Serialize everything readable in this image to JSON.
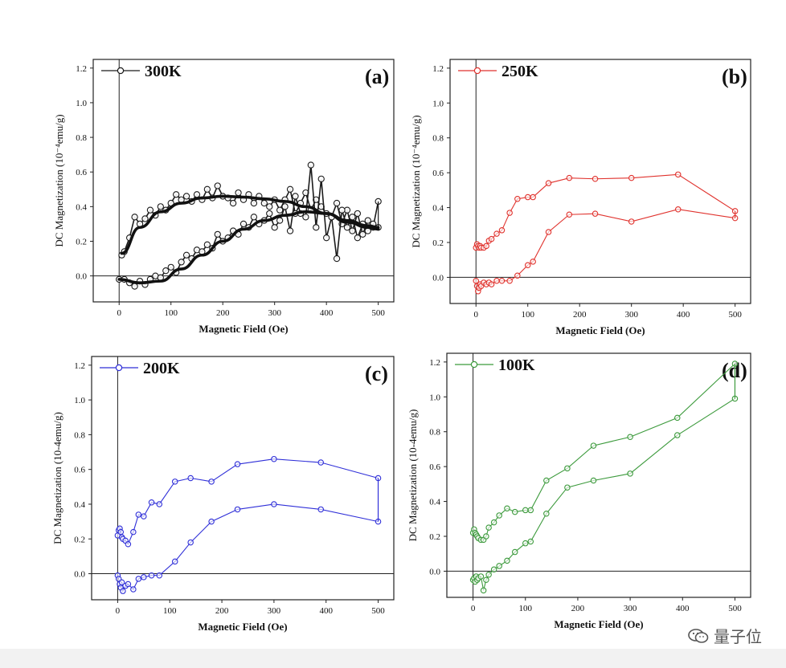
{
  "chart_data": [
    {
      "id": "a",
      "type": "line",
      "panel_label": "(a)",
      "xlabel": "Magnetic Field (Oe)",
      "ylabel": "DC Magnetization (10⁻⁴emu/g)",
      "xlim": [
        -50,
        530
      ],
      "ylim": [
        -0.15,
        1.25
      ],
      "xticks": [
        0,
        100,
        200,
        300,
        400,
        500
      ],
      "yticks": [
        0.0,
        0.2,
        0.4,
        0.6,
        0.8,
        1.0,
        1.2
      ],
      "xtick_labels": [
        "0",
        "100",
        "200",
        "300",
        "400",
        "500"
      ],
      "ytick_labels": [
        "0.0",
        "0.2",
        "0.4",
        "0.6",
        "0.8",
        "1.0",
        "1.2"
      ],
      "color": "#1a1a1a",
      "series": [
        {
          "name": "300K",
          "branch_upper": {
            "x": [
              5,
              10,
              20,
              30,
              40,
              50,
              60,
              70,
              80,
              90,
              100,
              110,
              120,
              130,
              140,
              150,
              160,
              170,
              180,
              190,
              200,
              210,
              220,
              230,
              240,
              250,
              260,
              270,
              280,
              290,
              300,
              310,
              320,
              330,
              340,
              350,
              360,
              370,
              380,
              390,
              400,
              410,
              420,
              430,
              440,
              450,
              460,
              470,
              480,
              490,
              500
            ],
            "y": [
              0.12,
              0.14,
              0.22,
              0.34,
              0.3,
              0.33,
              0.38,
              0.35,
              0.4,
              0.38,
              0.42,
              0.47,
              0.44,
              0.46,
              0.43,
              0.47,
              0.44,
              0.5,
              0.45,
              0.52,
              0.46,
              0.45,
              0.42,
              0.48,
              0.44,
              0.47,
              0.42,
              0.46,
              0.42,
              0.4,
              0.44,
              0.38,
              0.44,
              0.5,
              0.36,
              0.42,
              0.48,
              0.38,
              0.44,
              0.4,
              0.36,
              0.34,
              0.42,
              0.3,
              0.38,
              0.26,
              0.36,
              0.24,
              0.32,
              0.28,
              0.43
            ]
          },
          "branch_lower": {
            "x": [
              0,
              10,
              20,
              30,
              40,
              50,
              60,
              70,
              80,
              90,
              100,
              110,
              120,
              130,
              140,
              150,
              160,
              170,
              180,
              190,
              200,
              210,
              220,
              230,
              240,
              250,
              260,
              270,
              280,
              290,
              300,
              310,
              320,
              330,
              340,
              350,
              360,
              370,
              380,
              390,
              400,
              410,
              420,
              430,
              440,
              450,
              460,
              470,
              480,
              490,
              500
            ],
            "y": [
              -0.02,
              -0.02,
              -0.04,
              -0.06,
              -0.03,
              -0.05,
              -0.02,
              0.0,
              -0.01,
              0.03,
              0.05,
              0.02,
              0.08,
              0.12,
              0.1,
              0.15,
              0.14,
              0.18,
              0.16,
              0.24,
              0.2,
              0.22,
              0.26,
              0.24,
              0.3,
              0.28,
              0.34,
              0.3,
              0.32,
              0.36,
              0.28,
              0.32,
              0.4,
              0.26,
              0.46,
              0.36,
              0.34,
              0.64,
              0.28,
              0.56,
              0.22,
              0.34,
              0.1,
              0.38,
              0.28,
              0.34,
              0.22,
              0.3,
              0.26,
              0.3,
              0.28
            ]
          },
          "fit_upper": {
            "x": [
              5,
              40,
              80,
              120,
              160,
              200,
              240,
              280,
              320,
              360,
              400,
              440,
              480,
              500
            ],
            "y": [
              0.13,
              0.28,
              0.37,
              0.42,
              0.45,
              0.46,
              0.455,
              0.445,
              0.43,
              0.4,
              0.36,
              0.31,
              0.28,
              0.27
            ]
          },
          "fit_lower": {
            "x": [
              0,
              40,
              80,
              120,
              160,
              200,
              240,
              280,
              320,
              360,
              400,
              440,
              480,
              500
            ],
            "y": [
              -0.02,
              -0.04,
              -0.03,
              0.04,
              0.12,
              0.2,
              0.27,
              0.32,
              0.35,
              0.37,
              0.36,
              0.32,
              0.29,
              0.28
            ]
          }
        }
      ]
    },
    {
      "id": "b",
      "type": "line",
      "panel_label": "(b)",
      "xlabel": "Magnetic Field (Oe)",
      "ylabel": "DC Magnetization (10⁻⁴emu/g)",
      "xlim": [
        -50,
        530
      ],
      "ylim": [
        -0.15,
        1.25
      ],
      "xticks": [
        0,
        100,
        200,
        300,
        400,
        500
      ],
      "yticks": [
        0.0,
        0.2,
        0.4,
        0.6,
        0.8,
        1.0,
        1.2
      ],
      "xtick_labels": [
        "0",
        "100",
        "200",
        "300",
        "400",
        "500"
      ],
      "ytick_labels": [
        "0.0",
        "0.2",
        "0.4",
        "0.6",
        "0.8",
        "1.0",
        "1.2"
      ],
      "color": "#e0322d",
      "series": [
        {
          "name": "250K",
          "branch_upper": {
            "x": [
              0,
              2,
              4,
              6,
              8,
              10,
              15,
              20,
              25,
              30,
              40,
              50,
              65,
              80,
              100,
              110,
              140,
              180,
              230,
              300,
              390,
              500
            ],
            "y": [
              0.17,
              0.19,
              0.18,
              0.17,
              0.18,
              0.17,
              0.17,
              0.18,
              0.21,
              0.22,
              0.25,
              0.27,
              0.37,
              0.45,
              0.46,
              0.46,
              0.54,
              0.57,
              0.565,
              0.57,
              0.59,
              0.38
            ]
          },
          "branch_lower": {
            "x": [
              0,
              2,
              4,
              6,
              8,
              10,
              15,
              20,
              25,
              30,
              40,
              50,
              65,
              80,
              100,
              110,
              140,
              180,
              230,
              300,
              390,
              500
            ],
            "y": [
              -0.02,
              -0.05,
              -0.08,
              -0.06,
              -0.04,
              -0.05,
              -0.03,
              -0.04,
              -0.03,
              -0.04,
              -0.02,
              -0.02,
              -0.02,
              0.01,
              0.07,
              0.09,
              0.26,
              0.36,
              0.365,
              0.32,
              0.39,
              0.34
            ]
          }
        }
      ]
    },
    {
      "id": "c",
      "type": "line",
      "panel_label": "(c)",
      "xlabel": "Magnetic Field (Oe)",
      "ylabel": "DC Magnetization (10-4emu/g)",
      "xlim": [
        -50,
        530
      ],
      "ylim": [
        -0.15,
        1.25
      ],
      "xticks": [
        0,
        100,
        200,
        300,
        400,
        500
      ],
      "yticks": [
        0.0,
        0.2,
        0.4,
        0.6,
        0.8,
        1.0,
        1.2
      ],
      "xtick_labels": [
        "0",
        "100",
        "200",
        "300",
        "400",
        "500"
      ],
      "ytick_labels": [
        "0.0",
        "0.2",
        "0.4",
        "0.6",
        "0.8",
        "1.0",
        "1.2"
      ],
      "color": "#2f2fd8",
      "series": [
        {
          "name": "200K",
          "branch_upper": {
            "x": [
              0,
              2,
              4,
              6,
              8,
              10,
              15,
              20,
              30,
              40,
              50,
              65,
              80,
              110,
              140,
              180,
              230,
              300,
              390,
              500
            ],
            "y": [
              0.22,
              0.25,
              0.26,
              0.24,
              0.21,
              0.2,
              0.19,
              0.17,
              0.24,
              0.34,
              0.33,
              0.41,
              0.4,
              0.53,
              0.55,
              0.53,
              0.63,
              0.66,
              0.64,
              0.55
            ]
          },
          "branch_lower": {
            "x": [
              0,
              2,
              4,
              6,
              8,
              10,
              15,
              20,
              30,
              40,
              50,
              65,
              80,
              110,
              140,
              180,
              230,
              300,
              390,
              500
            ],
            "y": [
              -0.01,
              -0.03,
              -0.06,
              -0.08,
              -0.05,
              -0.1,
              -0.07,
              -0.06,
              -0.09,
              -0.03,
              -0.02,
              -0.01,
              -0.01,
              0.07,
              0.18,
              0.3,
              0.37,
              0.4,
              0.37,
              0.3
            ]
          }
        }
      ]
    },
    {
      "id": "d",
      "type": "line",
      "panel_label": "(d)",
      "xlabel": "Magnetic Field (Oe)",
      "ylabel": "DC Magnetization (10-4emu/g)",
      "xlim": [
        -50,
        530
      ],
      "ylim": [
        -0.15,
        1.25
      ],
      "xticks": [
        0,
        100,
        200,
        300,
        400,
        500
      ],
      "yticks": [
        0.0,
        0.2,
        0.4,
        0.6,
        0.8,
        1.0,
        1.2
      ],
      "xtick_labels": [
        "0",
        "100",
        "200",
        "300",
        "400",
        "500"
      ],
      "ytick_labels": [
        "0.0",
        "0.2",
        "0.4",
        "0.6",
        "0.8",
        "1.0",
        "1.2"
      ],
      "color": "#3c9a3c",
      "series": [
        {
          "name": "100K",
          "branch_upper": {
            "x": [
              0,
              2,
              4,
              6,
              8,
              10,
              15,
              20,
              25,
              30,
              40,
              50,
              65,
              80,
              100,
              110,
              140,
              180,
              230,
              300,
              390,
              500
            ],
            "y": [
              0.22,
              0.24,
              0.22,
              0.21,
              0.2,
              0.19,
              0.18,
              0.18,
              0.2,
              0.25,
              0.28,
              0.32,
              0.36,
              0.34,
              0.35,
              0.35,
              0.52,
              0.59,
              0.72,
              0.77,
              0.88,
              1.19
            ]
          },
          "branch_lower": {
            "x": [
              0,
              2,
              4,
              6,
              8,
              10,
              15,
              20,
              25,
              30,
              40,
              50,
              65,
              80,
              100,
              110,
              140,
              180,
              230,
              300,
              390,
              500
            ],
            "y": [
              -0.05,
              -0.04,
              -0.06,
              -0.03,
              -0.05,
              -0.04,
              -0.03,
              -0.11,
              -0.05,
              -0.02,
              0.01,
              0.03,
              0.06,
              0.11,
              0.16,
              0.17,
              0.33,
              0.48,
              0.52,
              0.56,
              0.78,
              0.99
            ]
          }
        }
      ]
    }
  ],
  "watermark": {
    "text": "量子位"
  }
}
